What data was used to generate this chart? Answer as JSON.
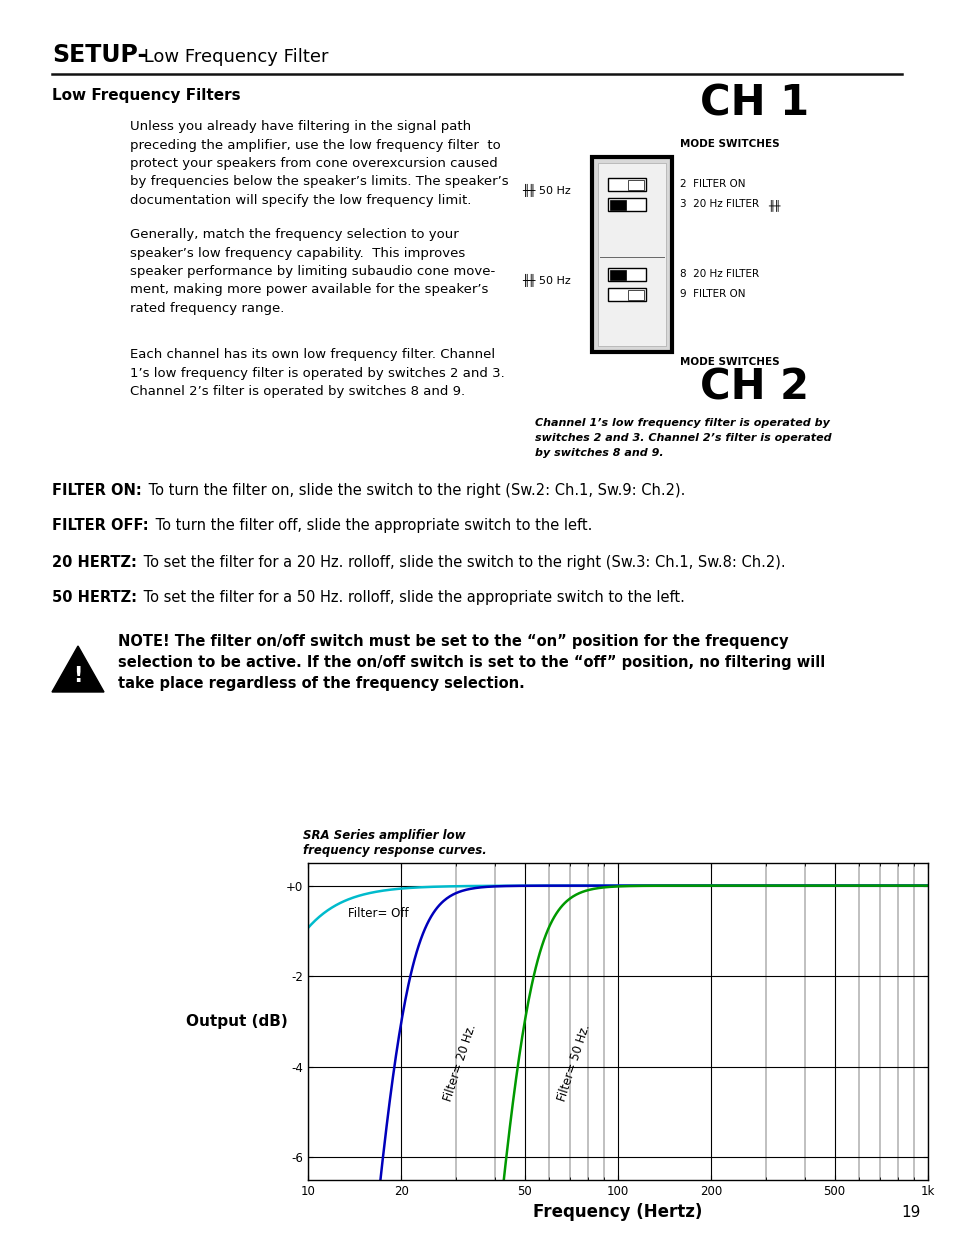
{
  "title_bold": "SETUP-",
  "title_regular": " Low Frequency Filter",
  "section_heading": "Low Frequency Filters",
  "paragraph1": "Unless you already have filtering in the signal path\npreceding the amplifier, use the low frequency filter  to\nprotect your speakers from cone overexcursion caused\nby frequencies below the speaker’s limits. The speaker’s\ndocumentation will specify the low frequency limit.",
  "paragraph2": "Generally, match the frequency selection to your\nspeaker’s low frequency capability.  This improves\nspeaker performance by limiting subaudio cone move-\nment, making more power available for the speaker’s\nrated frequency range.",
  "paragraph3": "Each channel has its own low frequency filter. Channel\n1’s low frequency filter is operated by switches 2 and 3.\nChannel 2’s filter is operated by switches 8 and 9.",
  "ch1_label": "CH 1",
  "ch2_label": "CH 2",
  "mode_switches": "MODE SWITCHES",
  "sw2_label": "2  FILTER ON",
  "sw3_label": "3  20 Hz FILTER",
  "sw8_label": "8  20 Hz FILTER",
  "sw9_label": "9  FILTER ON",
  "caption": "Channel 1’s low frequency filter is operated by\nswitches 2 and 3. Channel 2’s filter is operated\nby switches 8 and 9.",
  "filter_on_bold": "FILTER ON:",
  "filter_on_text": " To turn the filter on, slide the switch to the right (Sw.2: Ch.1, Sw.9: Ch.2).",
  "filter_off_bold": "FILTER OFF:",
  "filter_off_text": " To turn the filter off, slide the appropriate switch to the left.",
  "hz20_bold": "20 HERTZ:",
  "hz20_text": " To set the filter for a 20 Hz. rolloff, slide the switch to the right (Sw.3: Ch.1, Sw.8: Ch.2).",
  "hz50_bold": "50 HERTZ:",
  "hz50_text": " To set the filter for a 50 Hz. rolloff, slide the appropriate switch to the left.",
  "note_text": "NOTE! The filter on/off switch must be set to the “on” position for the frequency\nselection to be active. If the on/off switch is set to the “off” position, no filtering will\ntake place regardless of the frequency selection.",
  "graph_ylabel": "Output (dB)",
  "graph_xlabel": "Frequency (Hertz)",
  "graph_caption": "SRA Series amplifier low\nfrequency response curves.",
  "filter_off_label": "Filter= Off",
  "filter_20_label": "Filter= 20 Hz.",
  "filter_50_label": "Filter= 50 Hz.",
  "page_number": "19",
  "bg_color": "#ffffff",
  "text_color": "#000000",
  "line_color_off": "#00bbcc",
  "line_color_20": "#0000bb",
  "line_color_50": "#009900",
  "graph_grid_color": "#000000"
}
